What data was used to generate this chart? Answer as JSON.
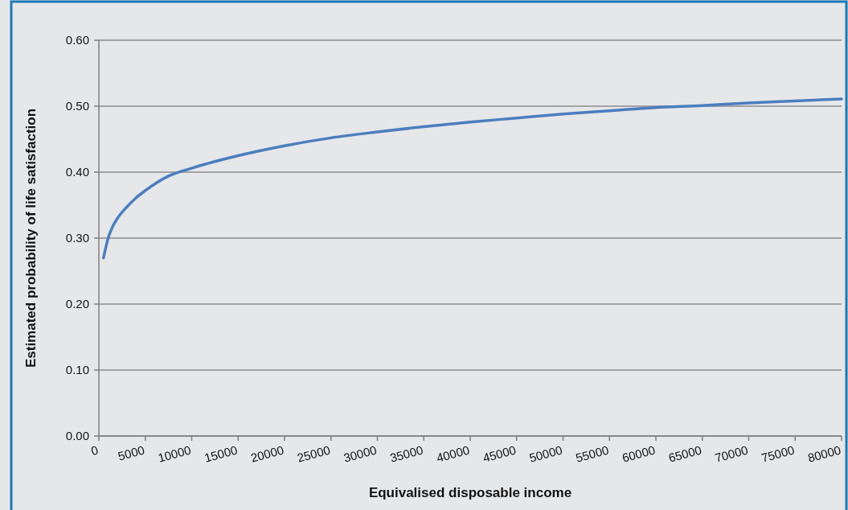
{
  "chart_data": {
    "type": "line",
    "xlabel": "Equivalised disposable income",
    "ylabel": "Estimated probability of life satisfaction",
    "xlim": [
      0,
      80000
    ],
    "xticks": [
      0,
      5000,
      10000,
      15000,
      20000,
      25000,
      30000,
      35000,
      40000,
      45000,
      50000,
      55000,
      60000,
      65000,
      70000,
      75000,
      80000
    ],
    "ylim": [
      0,
      0.6
    ],
    "yticks": [
      {
        "value": 0,
        "label": "0.00"
      },
      {
        "value": 0.1,
        "label": "0.10"
      },
      {
        "value": 0.2,
        "label": "0.20"
      },
      {
        "value": 0.3,
        "label": "0.30"
      },
      {
        "value": 0.4,
        "label": "0.40"
      },
      {
        "value": 0.5,
        "label": "0.50"
      },
      {
        "value": 0.6,
        "label": "0.60"
      }
    ],
    "grid": "y",
    "marker": "none",
    "line_style": "solid",
    "x": [
      500,
      1000,
      1500,
      2000,
      3000,
      4000,
      5000,
      7500,
      10000,
      15000,
      20000,
      25000,
      30000,
      35000,
      40000,
      45000,
      50000,
      55000,
      60000,
      65000,
      70000,
      75000,
      80000
    ],
    "series": [
      {
        "color": "#4a7ebf",
        "values": [
          0.27,
          0.3,
          0.318,
          0.33,
          0.347,
          0.361,
          0.372,
          0.394,
          0.406,
          0.425,
          0.44,
          0.452,
          0.461,
          0.469,
          0.476,
          0.482,
          0.488,
          0.493,
          0.498,
          0.501,
          0.505,
          0.508,
          0.511
        ]
      }
    ]
  }
}
